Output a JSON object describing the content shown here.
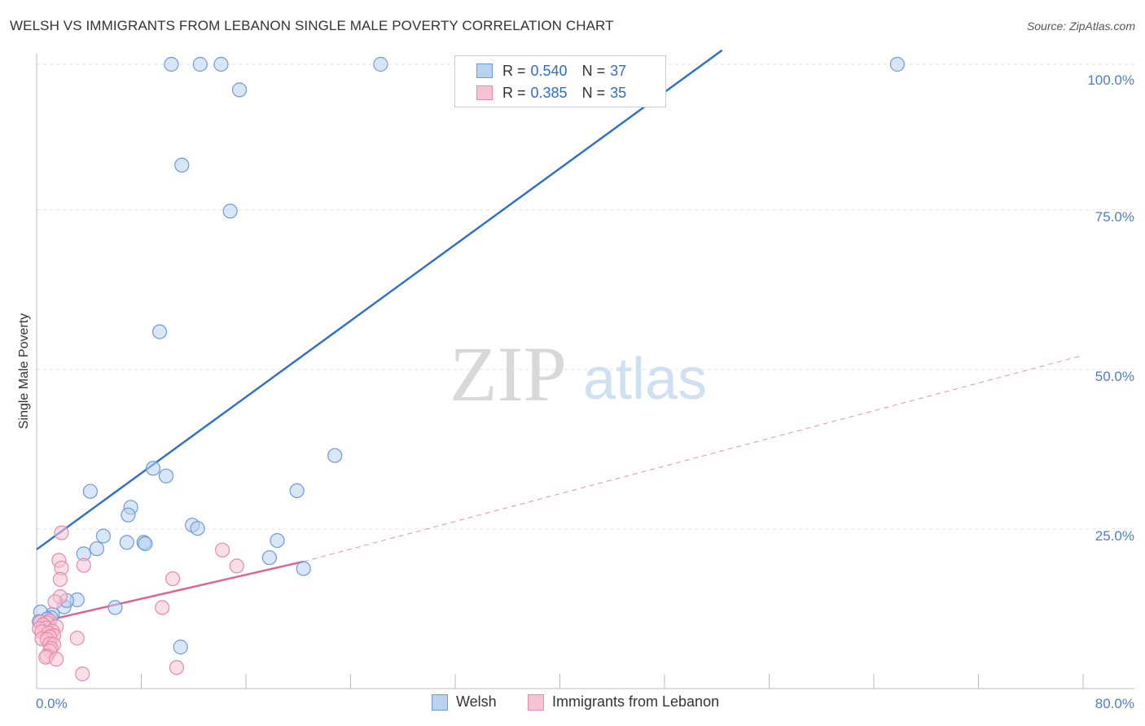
{
  "title": "WELSH VS IMMIGRANTS FROM LEBANON SINGLE MALE POVERTY CORRELATION CHART",
  "source": "Source: ZipAtlas.com",
  "watermark": {
    "part1": "ZIP",
    "part2": "atlas"
  },
  "legend": {
    "welsh": {
      "r_label": "R =",
      "r_value": "0.540",
      "n_label": "N =",
      "n_value": "37"
    },
    "lebanon": {
      "r_label": "R =",
      "r_value": "0.385",
      "n_label": "N =",
      "n_value": "35"
    }
  },
  "bottom_legend": {
    "welsh": "Welsh",
    "lebanon": "Immigrants from Lebanon"
  },
  "colors": {
    "welsh_fill": "#b8d2f0",
    "welsh_stroke": "#6b9bd8",
    "welsh_line": "#2a6fd0",
    "lebanon_fill": "#f7c3d3",
    "lebanon_stroke": "#e88aab",
    "lebanon_line": "#e0608e"
  },
  "chart_data": {
    "type": "scatter",
    "title": "WELSH VS IMMIGRANTS FROM LEBANON SINGLE MALE POVERTY CORRELATION CHART",
    "xlabel": "",
    "ylabel": "Single Male Poverty",
    "xlim": [
      0,
      80
    ],
    "ylim": [
      0,
      100
    ],
    "x_tick_labels": [
      "0.0%",
      "80.0%"
    ],
    "y_ticks": [
      25,
      50,
      75,
      100
    ],
    "y_tick_labels": [
      "25.0%",
      "50.0%",
      "75.0%",
      "100.0%"
    ],
    "series": [
      {
        "name": "Welsh",
        "r": 0.54,
        "n": 37,
        "points": [
          [
            10.3,
            97.8
          ],
          [
            12.5,
            97.8
          ],
          [
            14.1,
            97.8
          ],
          [
            26.3,
            97.8
          ],
          [
            65.8,
            97.8
          ],
          [
            15.5,
            93.8
          ],
          [
            11.1,
            82.0
          ],
          [
            14.8,
            74.8
          ],
          [
            9.4,
            55.9
          ],
          [
            22.8,
            36.5
          ],
          [
            8.9,
            34.5
          ],
          [
            9.9,
            33.3
          ],
          [
            4.1,
            30.9
          ],
          [
            19.9,
            31.0
          ],
          [
            7.2,
            28.4
          ],
          [
            7.0,
            27.2
          ],
          [
            11.9,
            25.6
          ],
          [
            12.3,
            25.1
          ],
          [
            18.4,
            23.2
          ],
          [
            5.1,
            23.9
          ],
          [
            6.9,
            22.9
          ],
          [
            8.2,
            22.9
          ],
          [
            8.3,
            22.7
          ],
          [
            4.6,
            21.9
          ],
          [
            3.6,
            21.1
          ],
          [
            17.8,
            20.5
          ],
          [
            20.4,
            18.8
          ],
          [
            3.1,
            13.9
          ],
          [
            6.0,
            12.7
          ],
          [
            2.1,
            12.8
          ],
          [
            2.3,
            13.8
          ],
          [
            1.2,
            11.6
          ],
          [
            1.1,
            11.1
          ],
          [
            0.3,
            12.0
          ],
          [
            11.0,
            6.5
          ],
          [
            0.8,
            10.9
          ],
          [
            0.2,
            10.5
          ]
        ],
        "trend": {
          "x1": 0,
          "y1": 21.8,
          "x2": 52.4,
          "y2": 100
        }
      },
      {
        "name": "Immigrants from Lebanon",
        "r": 0.385,
        "n": 35,
        "points": [
          [
            1.9,
            24.4
          ],
          [
            14.2,
            21.7
          ],
          [
            1.7,
            20.1
          ],
          [
            3.6,
            19.3
          ],
          [
            15.3,
            19.2
          ],
          [
            1.9,
            18.9
          ],
          [
            10.4,
            17.2
          ],
          [
            1.8,
            17.1
          ],
          [
            1.8,
            14.4
          ],
          [
            1.4,
            13.6
          ],
          [
            9.6,
            12.7
          ],
          [
            1.0,
            10.6
          ],
          [
            0.3,
            10.4
          ],
          [
            0.8,
            10.3
          ],
          [
            0.5,
            10.0
          ],
          [
            1.5,
            9.7
          ],
          [
            0.7,
            9.5
          ],
          [
            0.2,
            9.4
          ],
          [
            1.2,
            9.0
          ],
          [
            0.4,
            8.9
          ],
          [
            0.9,
            8.7
          ],
          [
            1.3,
            8.3
          ],
          [
            1.0,
            8.1
          ],
          [
            3.1,
            7.9
          ],
          [
            0.4,
            7.8
          ],
          [
            0.8,
            7.7
          ],
          [
            1.0,
            7.0
          ],
          [
            1.3,
            6.9
          ],
          [
            1.1,
            6.3
          ],
          [
            1.0,
            5.9
          ],
          [
            0.8,
            5.1
          ],
          [
            0.7,
            4.9
          ],
          [
            1.5,
            4.6
          ],
          [
            10.7,
            3.3
          ],
          [
            3.5,
            2.3
          ]
        ],
        "trend": {
          "x1": 0,
          "y1": 10.3,
          "x2": 20.4,
          "y2": 19.9
        },
        "trend_extended": {
          "x1": 20.4,
          "y1": 19.9,
          "x2": 80,
          "y2": 52.2
        }
      }
    ]
  }
}
